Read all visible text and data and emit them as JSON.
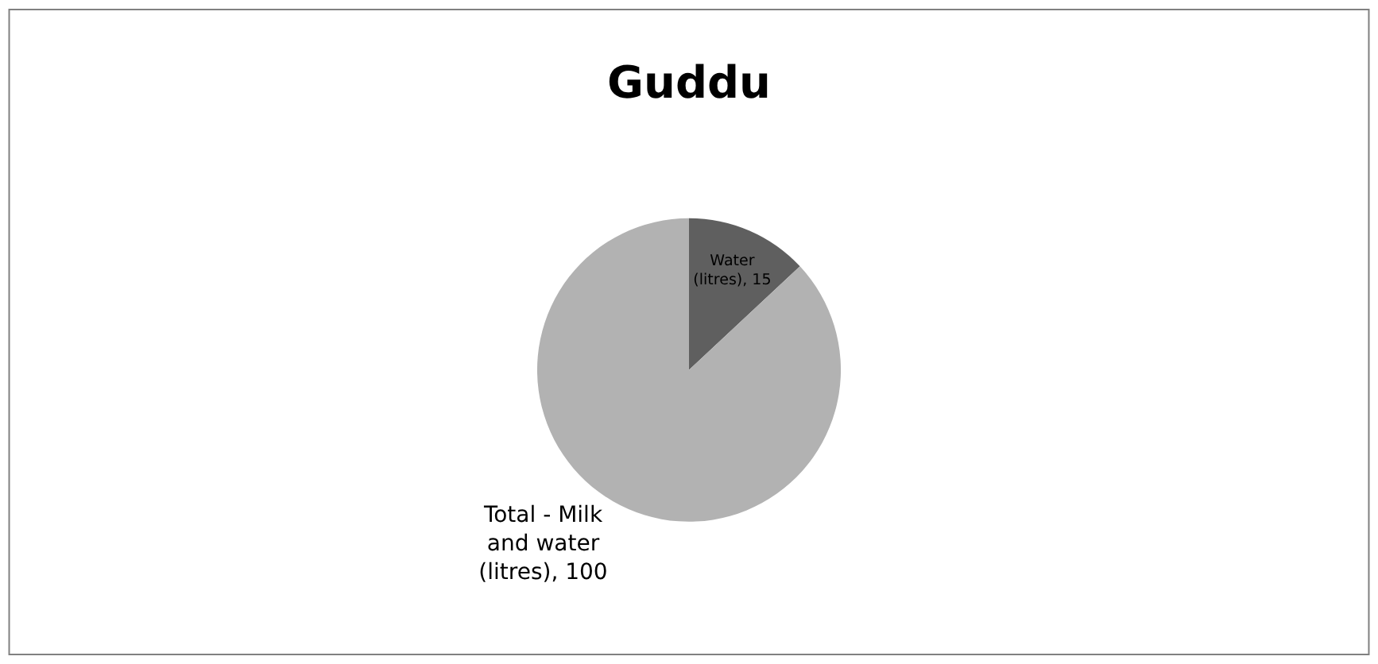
{
  "chart_data": {
    "type": "pie",
    "title": "Guddu",
    "categories": [
      "Water (litres)",
      "Total - Milk and water (litres)"
    ],
    "values": [
      15,
      100
    ],
    "colors": [
      "#5f5f5f",
      "#b2b2b2"
    ],
    "value_labels": [
      ", 15",
      ", 100"
    ],
    "legend": false
  }
}
